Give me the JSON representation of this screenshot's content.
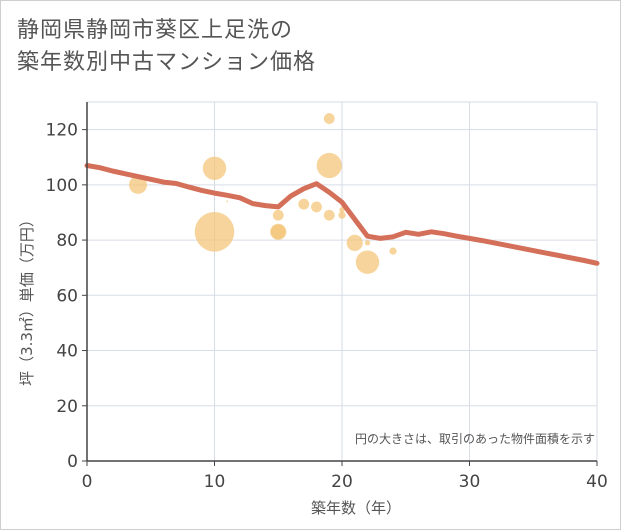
{
  "page": {
    "title_line1": "静岡県静岡市葵区上足洗の",
    "title_line2": "築年数別中古マンション価格"
  },
  "chart_data": {
    "type": "scatter",
    "title": "静岡県静岡市葵区上足洗の築年数別中古マンション価格",
    "xlabel": "築年数（年）",
    "ylabel": "坪（3.3㎡）単価（万円）",
    "xlim": [
      0,
      40
    ],
    "ylim": [
      0,
      130
    ],
    "xticks": [
      0,
      10,
      20,
      30,
      40
    ],
    "yticks": [
      0,
      20,
      40,
      60,
      80,
      100,
      120
    ],
    "grid": true,
    "note": "円の大きさは、取引のあった物件面積を示す",
    "colors": {
      "bubble": "#f3c57a",
      "line": "#d4705a",
      "grid": "#d6dde6",
      "axis": "#444444"
    },
    "bubbles": [
      {
        "x": 4,
        "y": 100,
        "size": 10
      },
      {
        "x": 10,
        "y": 106,
        "size": 13
      },
      {
        "x": 10,
        "y": 83,
        "size": 22
      },
      {
        "x": 11,
        "y": 94,
        "size": 1
      },
      {
        "x": 15,
        "y": 89,
        "size": 6
      },
      {
        "x": 15,
        "y": 83,
        "size": 9
      },
      {
        "x": 15,
        "y": 83,
        "size": 8
      },
      {
        "x": 17,
        "y": 93,
        "size": 6
      },
      {
        "x": 18,
        "y": 92,
        "size": 6
      },
      {
        "x": 19,
        "y": 124,
        "size": 6
      },
      {
        "x": 19,
        "y": 107,
        "size": 14
      },
      {
        "x": 19,
        "y": 89,
        "size": 6
      },
      {
        "x": 20,
        "y": 89,
        "size": 4
      },
      {
        "x": 20,
        "y": 91,
        "size": 3
      },
      {
        "x": 21,
        "y": 79,
        "size": 9
      },
      {
        "x": 22,
        "y": 72,
        "size": 13
      },
      {
        "x": 22,
        "y": 79,
        "size": 3
      },
      {
        "x": 24,
        "y": 76,
        "size": 4
      }
    ],
    "trend": {
      "x": [
        0,
        1,
        2,
        3,
        4,
        5,
        6,
        7,
        8,
        9,
        10,
        11,
        12,
        13,
        14,
        15,
        16,
        17,
        18,
        19,
        20,
        21,
        22,
        23,
        24,
        25,
        26,
        27,
        28,
        29,
        30,
        31,
        32,
        33,
        34,
        35,
        36,
        37,
        38,
        39,
        40
      ],
      "y": [
        107,
        106.2,
        105,
        104,
        103,
        102,
        101,
        100.5,
        99.2,
        98,
        97,
        96.2,
        95.3,
        93.2,
        92.5,
        92,
        96,
        98.6,
        100.4,
        97.3,
        93.7,
        87.5,
        81.4,
        80.6,
        81.2,
        82.8,
        82.1,
        83,
        82.3,
        81.4,
        80.6,
        79.8,
        78.9,
        78,
        77.1,
        76.2,
        75.3,
        74.4,
        73.5,
        72.6,
        71.6
      ]
    }
  }
}
